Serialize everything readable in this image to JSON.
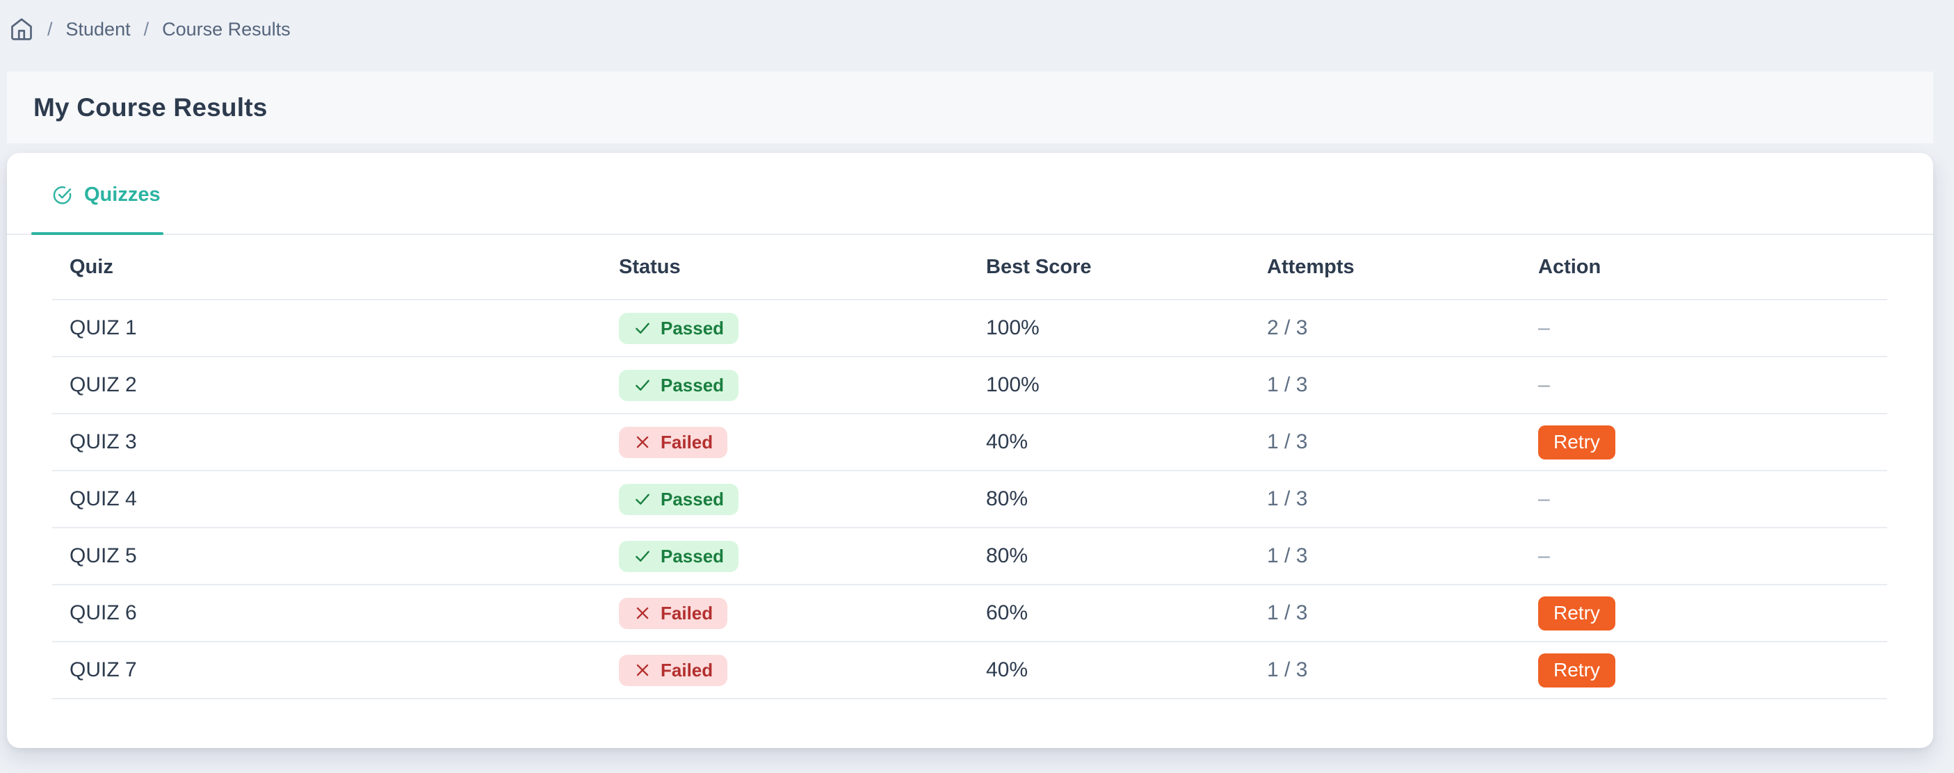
{
  "breadcrumb": {
    "separator": "/",
    "items": [
      "Student",
      "Course Results"
    ]
  },
  "page": {
    "title": "My Course Results"
  },
  "tabs": [
    {
      "label": "Quizzes",
      "icon": "circle-check-icon",
      "active": true
    }
  ],
  "table": {
    "columns": [
      "Quiz",
      "Status",
      "Best Score",
      "Attempts",
      "Action"
    ],
    "rows": [
      {
        "quiz": "QUIZ 1",
        "status": "Passed",
        "best_score": "100%",
        "attempts": "2 / 3",
        "action": "–"
      },
      {
        "quiz": "QUIZ 2",
        "status": "Passed",
        "best_score": "100%",
        "attempts": "1 / 3",
        "action": "–"
      },
      {
        "quiz": "QUIZ 3",
        "status": "Failed",
        "best_score": "40%",
        "attempts": "1 / 3",
        "action": "Retry"
      },
      {
        "quiz": "QUIZ 4",
        "status": "Passed",
        "best_score": "80%",
        "attempts": "1 / 3",
        "action": "–"
      },
      {
        "quiz": "QUIZ 5",
        "status": "Passed",
        "best_score": "80%",
        "attempts": "1 / 3",
        "action": "–"
      },
      {
        "quiz": "QUIZ 6",
        "status": "Failed",
        "best_score": "60%",
        "attempts": "1 / 3",
        "action": "Retry"
      },
      {
        "quiz": "QUIZ 7",
        "status": "Failed",
        "best_score": "40%",
        "attempts": "1 / 3",
        "action": "Retry"
      }
    ],
    "retry_label": "Retry",
    "empty_action": "–",
    "status_passed_label": "Passed",
    "status_failed_label": "Failed"
  },
  "icons": {
    "breadcrumb_home": "home-icon",
    "tab_quizzes": "circle-check-icon",
    "passed_badge": "check-icon",
    "failed_badge": "x-icon"
  },
  "colors": {
    "page_bg": "#edf0f5",
    "band_bg": "#f7f8fa",
    "card_bg": "#ffffff",
    "text_dark": "#2d3b4e",
    "text_gray": "#5d6e82",
    "text_muted": "#97a3b1",
    "border": "#e9edf2",
    "accent": "#2bb3a1",
    "passed_bg": "#d9f7e0",
    "passed_text": "#1a7e3f",
    "failed_bg": "#fcdcdc",
    "failed_text": "#b42f2f",
    "retry_bg": "#f05f23"
  }
}
